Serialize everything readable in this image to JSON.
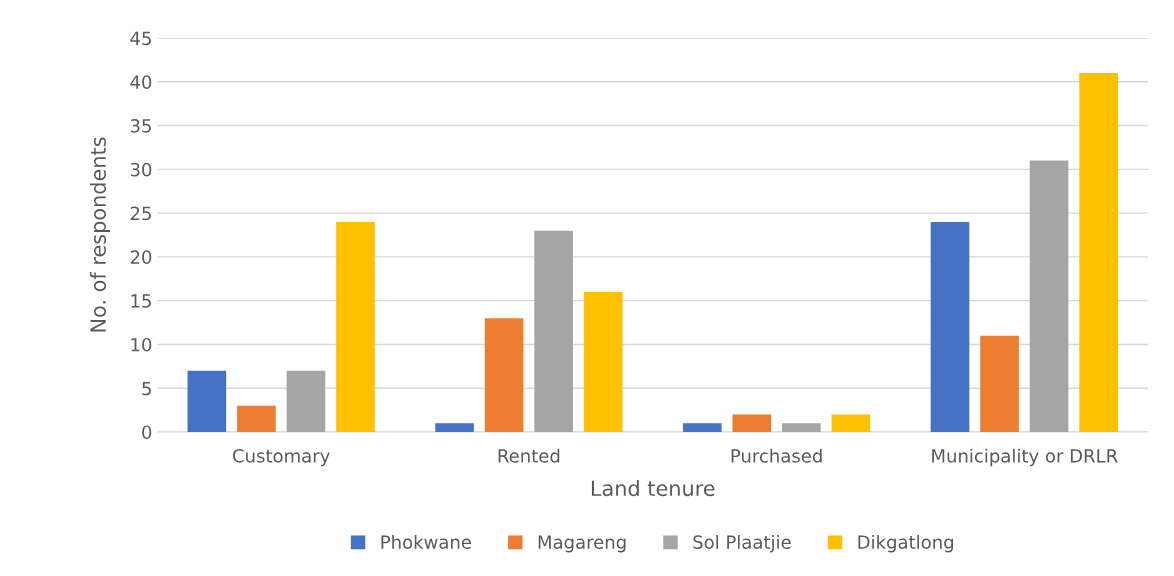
{
  "chart_data": {
    "type": "bar",
    "xlabel": "Land tenure",
    "ylabel": "No. of respondents",
    "categories": [
      "Customary",
      "Rented",
      "Purchased",
      "Municipality or DRLR"
    ],
    "series": [
      {
        "name": "Phokwane",
        "color": "#4472c4",
        "values": [
          7,
          1,
          1,
          24
        ]
      },
      {
        "name": "Magareng",
        "color": "#ed7d31",
        "values": [
          3,
          13,
          2,
          11
        ]
      },
      {
        "name": "Sol Plaatjie",
        "color": "#a5a5a5",
        "values": [
          7,
          23,
          1,
          31
        ]
      },
      {
        "name": "Dikgatlong",
        "color": "#ffc000",
        "values": [
          24,
          16,
          2,
          41
        ]
      }
    ],
    "ylim": [
      0,
      45
    ],
    "yticks": [
      0,
      5,
      10,
      15,
      20,
      25,
      30,
      35,
      40,
      45
    ],
    "grid": "y",
    "legend": "bottom"
  }
}
